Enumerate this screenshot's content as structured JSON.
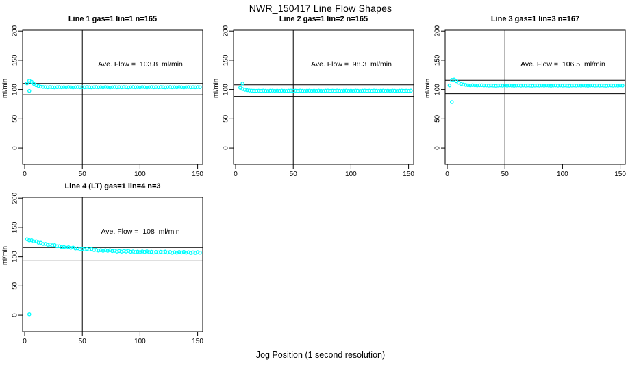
{
  "title": "NWR_150417  Line Flow Shapes",
  "xlabel": "Jog Position (1 second resolution)",
  "colors": {
    "points": "#00FFFF",
    "axis": "#000000",
    "background": "#FFFFFF"
  },
  "chart_data": [
    {
      "type": "scatter",
      "title": "Line 1 gas=1 lin=1 n=165",
      "annotation": "Ave. Flow =  103.8  ml/min",
      "ave_flow": 103.8,
      "ylabel": "ml/min",
      "x_ticks": [
        0,
        50,
        100,
        150
      ],
      "y_ticks": [
        0,
        50,
        100,
        150,
        200
      ],
      "xlim": [
        -1.8,
        154.4
      ],
      "ylim": [
        -28,
        201.4
      ],
      "vline_x": 50,
      "hlines": [
        110.4,
        91.3
      ],
      "x_start": 2,
      "x_step": 2,
      "y": [
        110.5,
        115.0,
        113.2,
        109.6,
        107.2,
        105.8,
        104.9,
        104.4,
        104.1,
        103.8,
        104.3,
        103.9,
        103.6,
        104.0,
        104.2,
        103.8,
        104.1,
        103.8,
        104.3,
        103.9,
        103.6,
        104.0,
        104.2,
        103.8,
        104.1,
        103.8,
        104.3,
        103.9,
        103.6,
        104.0,
        104.2,
        103.8,
        104.1,
        103.8,
        104.3,
        103.9,
        103.6,
        104.0,
        104.2,
        103.8,
        104.1,
        103.8,
        104.3,
        103.9,
        103.6,
        104.0,
        104.2,
        103.8,
        104.1,
        103.8,
        104.3,
        103.9,
        103.6,
        104.0,
        104.2,
        103.8,
        104.1,
        103.8,
        104.3,
        103.9,
        103.6,
        104.0,
        104.2,
        103.8,
        104.1,
        103.8,
        104.3,
        103.9,
        103.6,
        104.0,
        104.2,
        103.8,
        104.1,
        103.8,
        104.3,
        103.9
      ],
      "outliers": [
        [
          4,
          97.6
        ]
      ]
    },
    {
      "type": "scatter",
      "title": "Line 2 gas=1 lin=2 n=165",
      "annotation": "Ave. Flow =  98.3  ml/min",
      "ave_flow": 98.3,
      "ylabel": "ml/min",
      "x_ticks": [
        0,
        50,
        100,
        150
      ],
      "y_ticks": [
        0,
        50,
        100,
        150,
        200
      ],
      "xlim": [
        -1.8,
        154.4
      ],
      "ylim": [
        -28,
        201.4
      ],
      "vline_x": 50,
      "hlines": [
        108.1,
        88.3
      ],
      "x_start": 4,
      "x_step": 2,
      "y": [
        103.0,
        100.8,
        99.6,
        98.8,
        98.3,
        98.0,
        97.8,
        97.7,
        98.0,
        97.6,
        98.1,
        97.8,
        97.5,
        97.9,
        98.1,
        97.7,
        98.0,
        97.6,
        98.1,
        97.8,
        97.5,
        97.9,
        98.1,
        97.7,
        98.0,
        97.6,
        98.1,
        97.8,
        97.5,
        97.9,
        98.1,
        97.7,
        98.0,
        97.6,
        98.1,
        97.8,
        97.5,
        97.9,
        98.1,
        97.7,
        98.0,
        97.6,
        98.1,
        97.8,
        97.5,
        97.9,
        98.1,
        97.7,
        98.0,
        97.6,
        98.1,
        97.8,
        97.5,
        97.9,
        98.1,
        97.7,
        98.0,
        97.6,
        98.1,
        97.8,
        97.5,
        97.9,
        98.1,
        97.7,
        98.0,
        97.6,
        98.1,
        97.8,
        97.5,
        97.9,
        98.1,
        97.7,
        98.0,
        97.6,
        98.1
      ],
      "outliers": [
        [
          6,
          110.3
        ]
      ]
    },
    {
      "type": "scatter",
      "title": "Line 3 gas=1 lin=3 n=167",
      "annotation": "Ave. Flow =  106.5  ml/min",
      "ave_flow": 106.5,
      "ylabel": "ml/min",
      "x_ticks": [
        0,
        50,
        100,
        150
      ],
      "y_ticks": [
        0,
        50,
        100,
        150,
        200
      ],
      "xlim": [
        -1.8,
        154.4
      ],
      "ylim": [
        -28,
        201.4
      ],
      "vline_x": 50,
      "hlines": [
        115.6,
        93.0
      ],
      "x_start": 2,
      "x_step": 2,
      "y": [
        107.0,
        116.2,
        116.8,
        114.2,
        111.6,
        109.8,
        108.6,
        107.9,
        107.4,
        107.1,
        107.5,
        107.2,
        106.9,
        107.2,
        107.4,
        107.0,
        106.9,
        106.6,
        107.0,
        106.7,
        106.4,
        106.8,
        107.0,
        106.6,
        106.9,
        106.6,
        107.0,
        106.7,
        106.4,
        106.8,
        107.0,
        106.6,
        106.9,
        106.6,
        107.0,
        106.7,
        106.4,
        106.8,
        107.0,
        106.6,
        106.9,
        106.6,
        107.0,
        106.7,
        106.4,
        106.8,
        107.0,
        106.6,
        106.9,
        106.6,
        107.0,
        106.7,
        106.4,
        106.8,
        107.0,
        106.6,
        106.9,
        106.6,
        107.0,
        106.7,
        106.4,
        106.8,
        107.0,
        106.6,
        106.9,
        106.6,
        107.0,
        106.7,
        106.4,
        106.8,
        107.0,
        106.6,
        106.9,
        106.6,
        107.0,
        106.7
      ],
      "outliers": [
        [
          4,
          78.5
        ]
      ]
    },
    {
      "type": "scatter",
      "title": "Line 4 (LT) gas=1 lin=4 n=3",
      "annotation": "Ave. Flow =  108  ml/min",
      "ave_flow": 108,
      "ylabel": "ml/min",
      "x_ticks": [
        0,
        50,
        100,
        150
      ],
      "y_ticks": [
        0,
        50,
        100,
        150,
        200
      ],
      "xlim": [
        -1.8,
        154.4
      ],
      "ylim": [
        -28,
        201.4
      ],
      "vline_x": 50,
      "hlines": [
        115.6,
        94.1
      ],
      "x_start": 2,
      "x_step": 2,
      "y": [
        129.8,
        127.9,
        128.0,
        126.1,
        126.2,
        124.0,
        123.8,
        121.8,
        121.9,
        120.4,
        120.9,
        119.4,
        119.8,
        117.9,
        118.0,
        116.3,
        116.7,
        115.5,
        116.2,
        115.0,
        115.6,
        113.9,
        114.2,
        112.8,
        113.3,
        112.3,
        113.2,
        112.1,
        112.9,
        111.3,
        111.7,
        110.4,
        111.1,
        110.1,
        111.1,
        110.1,
        111.1,
        109.6,
        110.1,
        108.8,
        109.6,
        108.7,
        109.8,
        108.9,
        109.9,
        108.4,
        109.0,
        107.8,
        108.6,
        107.8,
        109.0,
        108.1,
        109.1,
        107.7,
        108.3,
        107.2,
        108.0,
        107.3,
        108.4,
        107.5,
        108.6,
        107.2,
        107.9,
        106.7,
        107.6,
        106.9,
        108.0,
        107.2,
        108.2,
        106.9,
        107.6,
        106.4,
        107.3,
        106.6,
        107.8,
        106.9
      ],
      "outliers": [
        [
          4,
          1.5
        ]
      ]
    }
  ]
}
